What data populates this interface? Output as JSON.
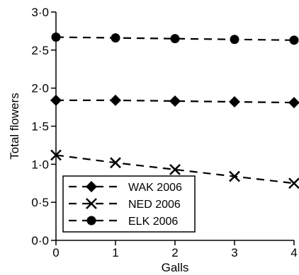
{
  "chart_data": {
    "type": "line",
    "xlabel": "Galls",
    "ylabel": "Total flowers",
    "xlim": [
      0,
      4
    ],
    "ylim": [
      0.0,
      3.0
    ],
    "x_ticks": [
      "0",
      "1",
      "2",
      "3",
      "4"
    ],
    "y_ticks": [
      "0·0",
      "0·5",
      "1·0",
      "1·5",
      "2·0",
      "2·5",
      "3·0"
    ],
    "x": [
      0,
      1,
      2,
      3,
      4
    ],
    "series": [
      {
        "name": "WAK 2006",
        "marker": "diamond",
        "line": "dashed",
        "values": [
          1.84,
          1.84,
          1.83,
          1.82,
          1.81
        ]
      },
      {
        "name": "NED 2006",
        "marker": "cross",
        "line": "dashed",
        "values": [
          1.12,
          1.02,
          0.93,
          0.84,
          0.75
        ]
      },
      {
        "name": "ELK 2006",
        "marker": "circle",
        "line": "dashed",
        "values": [
          2.67,
          2.66,
          2.65,
          2.64,
          2.63
        ]
      }
    ],
    "legend_position": "bottom-left",
    "grid": false,
    "color": "#000000"
  }
}
